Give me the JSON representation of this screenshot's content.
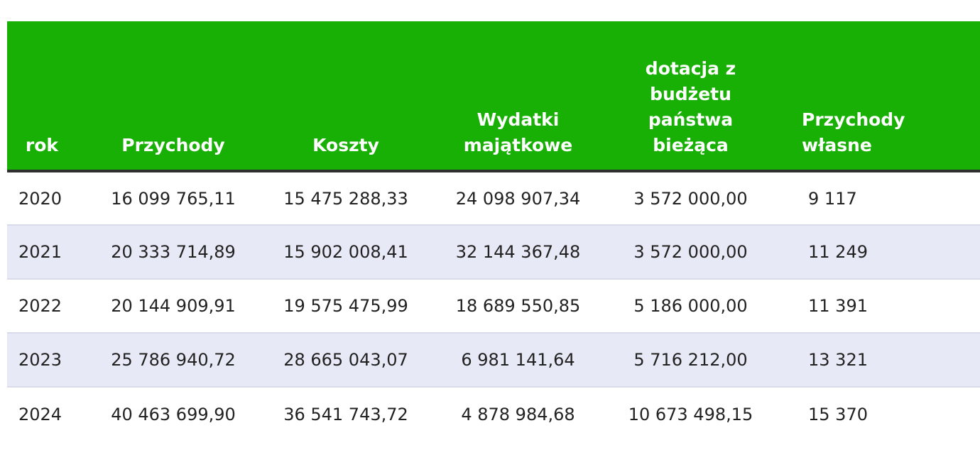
{
  "table": {
    "headers": {
      "rok": "rok",
      "przychody": "Przychody",
      "koszty": "Koszty",
      "wydatki": "Wydatki majątkowe",
      "dotacja": "dotacja z budżetu państwa bieżąca",
      "wlasne": "Przychody własne"
    },
    "rows": [
      {
        "rok": "2020",
        "przychody": "16 099 765,11",
        "koszty": "15 475 288,33",
        "wydatki": "24 098 907,34",
        "dotacja": "3 572 000,00",
        "wlasne": "9 117"
      },
      {
        "rok": "2021",
        "przychody": "20 333 714,89",
        "koszty": "15 902 008,41",
        "wydatki": "32 144 367,48",
        "dotacja": "3 572 000,00",
        "wlasne": "11 249"
      },
      {
        "rok": "2022",
        "przychody": "20 144 909,91",
        "koszty": "19 575 475,99",
        "wydatki": "18 689 550,85",
        "dotacja": "5 186 000,00",
        "wlasne": "11 391"
      },
      {
        "rok": "2023",
        "przychody": "25 786 940,72",
        "koszty": "28 665 043,07",
        "wydatki": "6 981 141,64",
        "dotacja": "5 716 212,00",
        "wlasne": "13 321"
      },
      {
        "rok": "2024",
        "przychody": "40 463 699,90",
        "koszty": "36 541 743,72",
        "wydatki": "4 878 984,68",
        "dotacja": "10 673 498,15",
        "wlasne": "15 370"
      }
    ]
  },
  "colors": {
    "header_bg": "#18b004",
    "header_text": "#ffffff",
    "row_alt_bg": "#e8e9f6"
  }
}
